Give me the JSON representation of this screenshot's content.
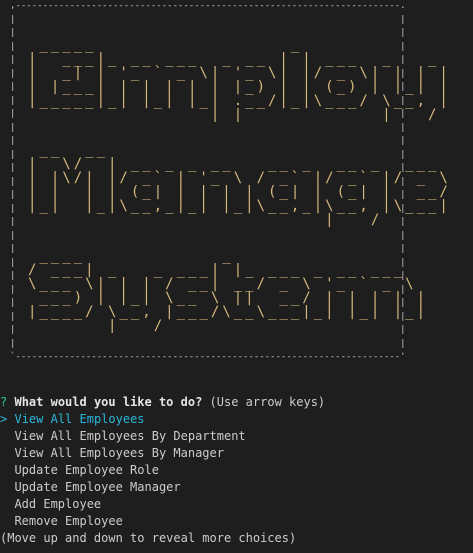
{
  "banner": {
    "frame_lines": [
      ",-----------------------------------------------------------------------.",
      "|                                                                       |",
      "|                                                                       |",
      "|                                                                       |",
      "|                                                                       |",
      "|                                                                       |",
      "|                                                                       |",
      "|                                                                       |",
      "|                                                                       |",
      "|                                                                       |",
      "|                                                                       |",
      "|                                                                       |",
      "|                                                                       |",
      "|                                                                       |",
      "|                                                                       |",
      "|                                                                       |",
      "|                                                                       |",
      "|                                                                       |",
      "|                                                                       |",
      "|                                                                       |",
      "|                                                                       |",
      "|                                                                       |",
      "|                                                                       |",
      "|                                                                       |",
      "|                                                                       |",
      "|                                                                       |",
      "`-----------------------------------------------------------------------'"
    ],
    "word1_ascii": " _____                 _\n|  ___|_ __ ___  _ __ | | ___  _   _  ___  ___\n|  _| | '_ ` _ \\| '_ \\| |/ _ \\| | | |/ _ \\/ _ \\\n| |___| | | | | | |_) | | (_) | |_| |  __/  __/\n|_____|_| |_| |_| .__/|_|\\___/ \\__, |\\___|\\___|\n                |_|            |___/",
    "word2_ascii": " __  __                                            _\n|  \\/  | __ _ _ __   __ _  __ _  ___ _ __ ___   ___ _ __ | |_\n| |\\/| |/ _` | '_ \\ / _` |/ _` |/ _ \\ '_ ` _ \\ / _ \\ '_ \\| __|\n| |  | | (_| | | | | (_| | (_| |  __/ | | | | |  __/ | | | |_\n|_|  |_|\\__,_|_| |_|\\__,_|\\__, |\\___|_| |_| |_|\\___|_| |_|\\__|\n                          |___/",
    "word3_ascii": " ____            _\n/ ___| _   _ ___| |_ ___ _ __ ___\n\\___ \\| | | / __| __/ _ \\ '_ ` _ \\\n ___) | |_| \\__ \\ ||  __/ | | | | |\n|____/ \\__, |___/\\__\\___|_| |_| |_|\n       |___/"
  },
  "prompt": {
    "qmark": "?",
    "question": "What would you like to do?",
    "hint": "(Use arrow keys)",
    "pointer": ">",
    "choices": [
      "View All Employees",
      "View All Employees By Department",
      "View All Employees By Manager",
      "Update Employee Role",
      "Update Employee Manager",
      "Add Employee",
      "Remove Employee"
    ],
    "footer": "(Move up and down to reveal more choices)"
  },
  "colors": {
    "background": "#1e1e1e",
    "ascii_art": "#d7ba7d",
    "qmark": "#23d18b",
    "selected": "#29b8db",
    "text": "#cccccc"
  }
}
